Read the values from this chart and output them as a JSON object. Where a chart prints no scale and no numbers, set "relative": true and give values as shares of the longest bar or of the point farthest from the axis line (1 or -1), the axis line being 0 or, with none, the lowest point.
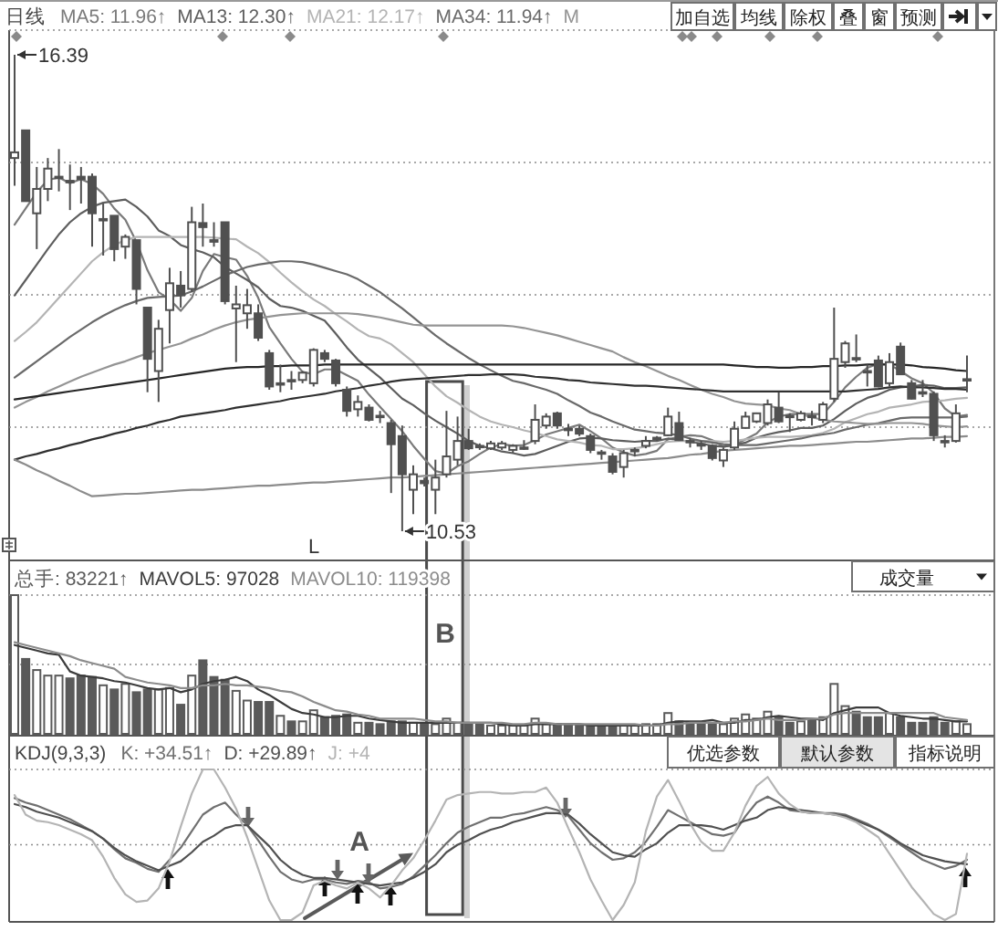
{
  "chart_data": [
    {
      "type": "candlestick",
      "title": "日线",
      "legend": "top left",
      "grid": "y",
      "color": "#505050",
      "categories": [
        null,
        null,
        null,
        null,
        null,
        null,
        null,
        null,
        null,
        null,
        null,
        null,
        null,
        null,
        null,
        null,
        null,
        null,
        null,
        null,
        null,
        null,
        null,
        null,
        null,
        null,
        null,
        null,
        null,
        null,
        null,
        null,
        null,
        null,
        null,
        null,
        null,
        null,
        null,
        null,
        null,
        null,
        null,
        null,
        null,
        null,
        null,
        null,
        null,
        null,
        null,
        null,
        null,
        null,
        null,
        null,
        null,
        null,
        null,
        null,
        null,
        null,
        null,
        null,
        null,
        null,
        null,
        null,
        null,
        null,
        null,
        null,
        null,
        null,
        null,
        null,
        null,
        null,
        null,
        null,
        null,
        null,
        null,
        null,
        null,
        null,
        null
      ],
      "ohlc": [
        [
          15.12,
          16.39,
          14.78,
          15.19
        ],
        [
          15.46,
          15.46,
          14.59,
          14.59
        ],
        [
          14.44,
          15.01,
          14.0,
          14.74
        ],
        [
          14.74,
          15.12,
          14.59,
          14.99
        ],
        [
          14.89,
          15.23,
          14.71,
          14.89
        ],
        [
          14.84,
          15.04,
          14.48,
          14.82
        ],
        [
          14.89,
          15.01,
          14.56,
          14.86
        ],
        [
          14.89,
          14.93,
          14.03,
          14.44
        ],
        [
          14.37,
          14.56,
          13.92,
          14.37
        ],
        [
          14.41,
          14.41,
          13.85,
          14.0
        ],
        [
          14.03,
          14.18,
          13.88,
          14.15
        ],
        [
          14.11,
          14.11,
          13.32,
          13.51
        ],
        [
          13.28,
          13.28,
          12.24,
          12.65
        ],
        [
          12.5,
          13.13,
          12.12,
          13.02
        ],
        [
          13.25,
          13.77,
          12.84,
          13.58
        ],
        [
          13.55,
          13.73,
          13.28,
          13.43
        ],
        [
          13.51,
          14.52,
          13.47,
          14.33
        ],
        [
          14.32,
          14.56,
          14.03,
          14.27
        ],
        [
          14.11,
          14.33,
          14.03,
          14.09
        ],
        [
          14.33,
          14.33,
          13.32,
          13.36
        ],
        [
          13.27,
          13.55,
          12.61,
          13.32
        ],
        [
          13.21,
          13.51,
          13.02,
          13.31
        ],
        [
          13.21,
          13.32,
          12.87,
          12.91
        ],
        [
          12.72,
          12.76,
          12.27,
          12.31
        ],
        [
          12.35,
          12.58,
          12.24,
          12.35
        ],
        [
          12.39,
          12.5,
          12.27,
          12.38
        ],
        [
          12.39,
          12.5,
          12.35,
          12.48
        ],
        [
          12.35,
          12.78,
          12.31,
          12.76
        ],
        [
          12.72,
          12.76,
          12.61,
          12.65
        ],
        [
          12.63,
          12.65,
          12.31,
          12.35
        ],
        [
          12.27,
          12.31,
          11.94,
          12.01
        ],
        [
          12.03,
          12.2,
          11.94,
          12.12
        ],
        [
          12.05,
          12.09,
          11.88,
          11.9
        ],
        [
          11.95,
          12.01,
          11.86,
          11.94
        ],
        [
          11.86,
          11.9,
          11.0,
          11.6
        ],
        [
          11.7,
          11.83,
          10.53,
          11.23
        ],
        [
          11.04,
          11.34,
          10.74,
          11.23
        ],
        [
          11.15,
          11.19,
          11.08,
          11.12
        ],
        [
          11.04,
          11.41,
          10.74,
          11.19
        ],
        [
          11.23,
          12.01,
          11.19,
          11.45
        ],
        [
          11.41,
          11.94,
          11.34,
          11.64
        ],
        [
          11.64,
          11.79,
          11.53,
          11.55
        ],
        [
          11.58,
          11.61,
          11.53,
          11.57
        ],
        [
          11.55,
          11.64,
          11.53,
          11.61
        ],
        [
          11.56,
          11.64,
          11.53,
          11.61
        ],
        [
          11.53,
          11.6,
          11.49,
          11.58
        ],
        [
          11.56,
          11.65,
          11.53,
          11.56
        ],
        [
          11.64,
          12.09,
          11.6,
          11.9
        ],
        [
          11.83,
          11.98,
          11.79,
          11.94
        ],
        [
          11.98,
          12.0,
          11.79,
          11.83
        ],
        [
          11.79,
          11.85,
          11.7,
          11.78
        ],
        [
          11.79,
          11.83,
          11.7,
          11.73
        ],
        [
          11.7,
          11.73,
          11.49,
          11.53
        ],
        [
          11.5,
          11.53,
          11.41,
          11.49
        ],
        [
          11.45,
          11.49,
          11.23,
          11.26
        ],
        [
          11.32,
          11.53,
          11.19,
          11.49
        ],
        [
          11.52,
          11.56,
          11.45,
          11.53
        ],
        [
          11.58,
          11.7,
          11.55,
          11.64
        ],
        [
          11.67,
          11.7,
          11.64,
          11.68
        ],
        [
          11.71,
          12.05,
          11.7,
          11.94
        ],
        [
          11.86,
          12.0,
          11.64,
          11.65
        ],
        [
          11.64,
          11.68,
          11.56,
          11.63
        ],
        [
          11.6,
          11.64,
          11.53,
          11.59
        ],
        [
          11.58,
          11.6,
          11.4,
          11.43
        ],
        [
          11.4,
          11.56,
          11.32,
          11.53
        ],
        [
          11.56,
          11.88,
          11.53,
          11.79
        ],
        [
          11.8,
          12.0,
          11.79,
          11.94
        ],
        [
          11.88,
          11.99,
          11.86,
          11.98
        ],
        [
          11.86,
          12.15,
          11.83,
          12.09
        ],
        [
          12.05,
          12.24,
          11.86,
          11.88
        ],
        [
          11.95,
          11.98,
          11.75,
          11.94
        ],
        [
          11.9,
          12.01,
          11.88,
          11.98
        ],
        [
          11.95,
          12.01,
          11.83,
          11.94
        ],
        [
          11.9,
          12.12,
          11.86,
          12.09
        ],
        [
          12.16,
          13.28,
          12.12,
          12.65
        ],
        [
          12.61,
          12.87,
          12.54,
          12.84
        ],
        [
          12.66,
          12.95,
          12.61,
          12.65
        ],
        [
          12.5,
          12.58,
          12.31,
          12.49
        ],
        [
          12.63,
          12.69,
          12.3,
          12.31
        ],
        [
          12.35,
          12.72,
          12.31,
          12.61
        ],
        [
          12.8,
          12.85,
          12.45,
          12.46
        ],
        [
          12.35,
          12.39,
          12.15,
          12.16
        ],
        [
          12.24,
          12.39,
          12.18,
          12.23
        ],
        [
          12.22,
          12.25,
          11.64,
          11.71
        ],
        [
          11.64,
          11.71,
          11.56,
          11.63
        ],
        [
          11.64,
          12.09,
          11.62,
          11.98
        ],
        [
          12.39,
          12.69,
          12.24,
          12.4
        ]
      ],
      "series": [
        {
          "name": "MA5: 11.96↑",
          "type": "line",
          "color": "#7a7a7a",
          "values": [
            14.3,
            14.5,
            14.7,
            14.85,
            14.88,
            14.81,
            14.86,
            14.8,
            14.68,
            14.5,
            14.36,
            14.09,
            13.74,
            13.47,
            13.38,
            13.24,
            13.4,
            13.73,
            13.94,
            13.9,
            13.87,
            13.67,
            13.4,
            13.04,
            12.84,
            12.65,
            12.49,
            12.46,
            12.52,
            12.52,
            12.45,
            12.38,
            12.21,
            12.06,
            11.91,
            11.76,
            11.58,
            11.42,
            11.27,
            11.24,
            11.33,
            11.39,
            11.48,
            11.56,
            11.6,
            11.58,
            11.59,
            11.65,
            11.72,
            11.76,
            11.8,
            11.84,
            11.76,
            11.67,
            11.56,
            11.5,
            11.46,
            11.48,
            11.52,
            11.66,
            11.69,
            11.71,
            11.7,
            11.65,
            11.57,
            11.59,
            11.66,
            11.73,
            11.87,
            11.94,
            11.97,
            11.97,
            11.97,
            11.97,
            12.12,
            12.3,
            12.43,
            12.54,
            12.59,
            12.58,
            12.5,
            12.41,
            12.35,
            12.23,
            12.04,
            11.94,
            11.96
          ]
        },
        {
          "name": "MA13: 12.30↑",
          "type": "line",
          "color": "#5e5e5e",
          "values": [
            13.43,
            13.62,
            13.81,
            14.0,
            14.18,
            14.33,
            14.44,
            14.52,
            14.57,
            14.59,
            14.61,
            14.52,
            14.4,
            14.23,
            14.16,
            14.05,
            14.0,
            13.96,
            13.9,
            13.78,
            13.7,
            13.62,
            13.53,
            13.39,
            13.3,
            13.28,
            13.24,
            13.18,
            13.12,
            12.96,
            12.79,
            12.64,
            12.53,
            12.42,
            12.29,
            12.16,
            12.08,
            11.98,
            11.89,
            11.81,
            11.73,
            11.64,
            11.58,
            11.55,
            11.51,
            11.49,
            11.46,
            11.48,
            11.53,
            11.58,
            11.63,
            11.67,
            11.68,
            11.67,
            11.65,
            11.64,
            11.63,
            11.64,
            11.64,
            11.67,
            11.65,
            11.63,
            11.61,
            11.58,
            11.57,
            11.59,
            11.62,
            11.68,
            11.72,
            11.75,
            11.77,
            11.8,
            11.8,
            11.83,
            11.91,
            12.01,
            12.1,
            12.17,
            12.21,
            12.27,
            12.3,
            12.31,
            12.33,
            12.32,
            12.29,
            12.29,
            12.3
          ]
        },
        {
          "name": "MA21: 12.17↑",
          "type": "line",
          "color": "#b4b4b4",
          "values": [
            12.87,
            12.98,
            13.1,
            13.25,
            13.4,
            13.55,
            13.7,
            13.85,
            13.96,
            14.05,
            14.11,
            14.15,
            14.15,
            14.15,
            14.15,
            14.15,
            14.15,
            14.15,
            14.14,
            14.13,
            14.12,
            14.03,
            13.95,
            13.84,
            13.71,
            13.59,
            13.48,
            13.38,
            13.3,
            13.2,
            13.11,
            13.01,
            12.93,
            12.9,
            12.83,
            12.72,
            12.61,
            12.46,
            12.31,
            12.19,
            12.11,
            12.02,
            11.94,
            11.88,
            11.84,
            11.81,
            11.77,
            11.74,
            11.7,
            11.66,
            11.64,
            11.62,
            11.59,
            11.58,
            11.54,
            11.54,
            11.55,
            11.57,
            11.6,
            11.63,
            11.64,
            11.64,
            11.64,
            11.64,
            11.63,
            11.64,
            11.66,
            11.68,
            11.69,
            11.69,
            11.69,
            11.7,
            11.71,
            11.74,
            11.79,
            11.87,
            11.92,
            11.97,
            12.0,
            12.05,
            12.07,
            12.09,
            12.12,
            12.13,
            12.14,
            12.16,
            12.17
          ]
        },
        {
          "name": "MA34: 11.94↑",
          "type": "line",
          "color": "#6a6a6a",
          "values": [
            12.42,
            12.52,
            12.62,
            12.72,
            12.82,
            12.92,
            13.01,
            13.1,
            13.18,
            13.25,
            13.31,
            13.36,
            13.4,
            13.41,
            13.42,
            13.43,
            13.48,
            13.54,
            13.61,
            13.68,
            13.73,
            13.78,
            13.81,
            13.83,
            13.85,
            13.85,
            13.84,
            13.81,
            13.77,
            13.73,
            13.69,
            13.63,
            13.55,
            13.47,
            13.37,
            13.27,
            13.16,
            13.05,
            12.94,
            12.84,
            12.75,
            12.66,
            12.58,
            12.51,
            12.44,
            12.38,
            12.35,
            12.31,
            12.27,
            12.22,
            12.14,
            12.07,
            11.99,
            11.94,
            11.88,
            11.83,
            11.78,
            11.76,
            11.74,
            11.73,
            11.71,
            11.67,
            11.64,
            11.62,
            11.6,
            11.59,
            11.59,
            11.59,
            11.61,
            11.63,
            11.65,
            11.67,
            11.7,
            11.72,
            11.74,
            11.78,
            11.81,
            11.84,
            11.86,
            11.89,
            11.92,
            11.93,
            11.93,
            11.93,
            11.93,
            11.93,
            11.94
          ]
        },
        {
          "name": "M",
          "type": "line",
          "color": "#949494",
          "values": [
            12.05,
            12.12,
            12.18,
            12.25,
            12.31,
            12.37,
            12.43,
            12.48,
            12.53,
            12.58,
            12.62,
            12.67,
            12.72,
            12.76,
            12.8,
            12.84,
            12.9,
            12.95,
            13.01,
            13.06,
            13.1,
            13.13,
            13.15,
            13.17,
            13.19,
            13.2,
            13.21,
            13.21,
            13.21,
            13.21,
            13.21,
            13.2,
            13.18,
            13.16,
            13.13,
            13.1,
            13.07,
            13.06,
            13.06,
            13.06,
            13.06,
            13.06,
            13.06,
            13.06,
            13.06,
            13.05,
            13.03,
            13.0,
            12.97,
            12.94,
            12.9,
            12.86,
            12.82,
            12.78,
            12.74,
            12.67,
            12.61,
            12.56,
            12.5,
            12.44,
            12.39,
            12.33,
            12.27,
            12.22,
            12.18,
            12.13,
            12.1,
            12.09,
            12.08,
            12.04,
            12.02,
            11.97,
            11.93,
            11.9,
            11.88,
            11.87,
            11.86,
            11.85,
            11.85,
            11.86,
            11.86,
            11.86,
            11.85,
            11.83,
            11.82,
            11.81,
            11.82
          ]
        },
        {
          "type": "line",
          "color": "#262626",
          "values": [
            12.15,
            12.17,
            12.19,
            12.21,
            12.23,
            12.25,
            12.27,
            12.29,
            12.31,
            12.33,
            12.35,
            12.37,
            12.39,
            12.41,
            12.43,
            12.45,
            12.47,
            12.49,
            12.51,
            12.53,
            12.54,
            12.55,
            12.55,
            12.56,
            12.56,
            12.57,
            12.57,
            12.57,
            12.58,
            12.58,
            12.58,
            12.58,
            12.58,
            12.58,
            12.58,
            12.58,
            12.58,
            12.58,
            12.58,
            12.58,
            12.58,
            12.58,
            12.58,
            12.58,
            12.58,
            12.58,
            12.58,
            12.58,
            12.58,
            12.58,
            12.58,
            12.58,
            12.58,
            12.58,
            12.58,
            12.58,
            12.58,
            12.58,
            12.58,
            12.58,
            12.58,
            12.58,
            12.58,
            12.58,
            12.58,
            12.57,
            12.56,
            12.55,
            12.55,
            12.54,
            12.54,
            12.55,
            12.55,
            12.56,
            12.56,
            12.57,
            12.57,
            12.58,
            12.58,
            12.58,
            12.58,
            12.57,
            12.55,
            12.54,
            12.53,
            12.51,
            12.5
          ]
        },
        {
          "type": "line",
          "color": "#303030",
          "values": [
            11.41,
            11.45,
            11.48,
            11.52,
            11.55,
            11.59,
            11.62,
            11.66,
            11.69,
            11.73,
            11.76,
            11.8,
            11.83,
            11.87,
            11.9,
            11.94,
            11.96,
            11.98,
            12.0,
            12.02,
            12.05,
            12.07,
            12.09,
            12.11,
            12.13,
            12.16,
            12.18,
            12.2,
            12.22,
            12.25,
            12.27,
            12.29,
            12.32,
            12.34,
            12.37,
            12.39,
            12.4,
            12.41,
            12.42,
            12.43,
            12.44,
            12.45,
            12.45,
            12.46,
            12.46,
            12.46,
            12.45,
            12.43,
            12.42,
            12.41,
            12.39,
            12.38,
            12.36,
            12.35,
            12.34,
            12.33,
            12.32,
            12.32,
            12.31,
            12.3,
            12.29,
            12.28,
            12.27,
            12.26,
            12.25,
            12.25,
            12.25,
            12.25,
            12.25,
            12.25,
            12.25,
            12.25,
            12.25,
            12.25,
            12.25,
            12.25,
            12.26,
            12.27,
            12.28,
            12.3,
            12.31,
            12.3,
            12.3,
            12.29,
            12.28,
            12.28,
            12.27
          ]
        },
        {
          "type": "line",
          "color": "#8c8c8c",
          "values": [
            11.41,
            11.35,
            11.28,
            11.22,
            11.15,
            11.09,
            11.02,
            10.96,
            10.97,
            10.98,
            10.99,
            10.99,
            11.0,
            11.01,
            11.02,
            11.03,
            11.04,
            11.04,
            11.05,
            11.06,
            11.07,
            11.08,
            11.09,
            11.09,
            11.1,
            11.11,
            11.12,
            11.13,
            11.13,
            11.14,
            11.15,
            11.16,
            11.17,
            11.18,
            11.19,
            11.19,
            11.2,
            11.21,
            11.22,
            11.23,
            11.24,
            11.25,
            11.26,
            11.27,
            11.28,
            11.29,
            11.3,
            11.31,
            11.32,
            11.33,
            11.34,
            11.35,
            11.36,
            11.37,
            11.38,
            11.39,
            11.4,
            11.41,
            11.42,
            11.43,
            11.45,
            11.47,
            11.48,
            11.5,
            11.52,
            11.53,
            11.54,
            11.55,
            11.56,
            11.57,
            11.58,
            11.58,
            11.59,
            11.6,
            11.61,
            11.62,
            11.63,
            11.63,
            11.64,
            11.65,
            11.66,
            11.67,
            11.67,
            11.68,
            11.69,
            11.69,
            11.7
          ]
        }
      ],
      "annotations": [
        "16.39",
        "10.53",
        "L",
        "加自选",
        "均线",
        "除权",
        "叠",
        "窗",
        "预测"
      ]
    },
    {
      "type": "bar",
      "relative": true,
      "legend": "top left",
      "ref_lines": [
        {
          "axis": "y",
          "value": 1,
          "line_style": "dotted",
          "color": "#8c8c8c"
        },
        {
          "axis": "y",
          "value": 0.5,
          "line_style": "dotted",
          "color": "#8c8c8c"
        }
      ],
      "categories": [
        null,
        null,
        null,
        null,
        null,
        null,
        null,
        null,
        null,
        null,
        null,
        null,
        null,
        null,
        null,
        null,
        null,
        null,
        null,
        null,
        null,
        null,
        null,
        null,
        null,
        null,
        null,
        null,
        null,
        null,
        null,
        null,
        null,
        null,
        null,
        null,
        null,
        null,
        null,
        null,
        null,
        null,
        null,
        null,
        null,
        null,
        null,
        null,
        null,
        null,
        null,
        null,
        null,
        null,
        null,
        null,
        null,
        null,
        null,
        null,
        null,
        null,
        null,
        null,
        null,
        null,
        null,
        null,
        null,
        null,
        null,
        null,
        null,
        null,
        null,
        null,
        null,
        null,
        null,
        null,
        null,
        null,
        null,
        null,
        null,
        null,
        null
      ],
      "series": [
        {
          "name": "总手: 83221↑",
          "type": "bar",
          "color": "#5a5a5a",
          "colors": [
            "#ffffff",
            "#5a5a5a",
            "#ffffff",
            "#ffffff",
            "#ffffff",
            "#5a5a5a",
            "#5a5a5a",
            "#5a5a5a",
            "#ffffff",
            "#5a5a5a",
            "#ffffff",
            "#5a5a5a",
            "#5a5a5a",
            "#ffffff",
            "#ffffff",
            "#5a5a5a",
            "#ffffff",
            "#5a5a5a",
            "#5a5a5a",
            "#5a5a5a",
            "#ffffff",
            "#ffffff",
            "#5a5a5a",
            "#5a5a5a",
            "#ffffff",
            "#5a5a5a",
            "#ffffff",
            "#ffffff",
            "#5a5a5a",
            "#5a5a5a",
            "#5a5a5a",
            "#ffffff",
            "#5a5a5a",
            "#5a5a5a",
            "#5a5a5a",
            "#5a5a5a",
            "#ffffff",
            "#5a5a5a",
            "#ffffff",
            "#ffffff",
            "#ffffff",
            "#5a5a5a",
            "#5a5a5a",
            "#ffffff",
            "#ffffff",
            "#ffffff",
            "#ffffff",
            "#ffffff",
            "#ffffff",
            "#5a5a5a",
            "#5a5a5a",
            "#5a5a5a",
            "#5a5a5a",
            "#5a5a5a",
            "#5a5a5a",
            "#ffffff",
            "#ffffff",
            "#ffffff",
            "#ffffff",
            "#ffffff",
            "#5a5a5a",
            "#5a5a5a",
            "#5a5a5a",
            "#5a5a5a",
            "#ffffff",
            "#ffffff",
            "#ffffff",
            "#ffffff",
            "#ffffff",
            "#5a5a5a",
            "#5a5a5a",
            "#ffffff",
            "#5a5a5a",
            "#ffffff",
            "#ffffff",
            "#ffffff",
            "#5a5a5a",
            "#5a5a5a",
            "#5a5a5a",
            "#ffffff",
            "#5a5a5a",
            "#5a5a5a",
            "#5a5a5a",
            "#5a5a5a",
            "#5a5a5a",
            "#ffffff",
            "#ffffff"
          ],
          "values": [
            1,
            0.54,
            0.46,
            0.42,
            0.42,
            0.4,
            0.42,
            0.41,
            0.35,
            0.32,
            0.36,
            0.3,
            0.32,
            0.32,
            0.33,
            0.21,
            0.42,
            0.53,
            0.41,
            0.39,
            0.31,
            0.24,
            0.23,
            0.23,
            0.13,
            0.09,
            0.09,
            0.17,
            0.12,
            0.13,
            0.14,
            0.08,
            0.08,
            0.07,
            0.09,
            0.09,
            0.08,
            0.07,
            0.07,
            0.11,
            0.08,
            0.07,
            0.07,
            0.06,
            0.06,
            0.06,
            0.06,
            0.11,
            0.07,
            0.07,
            0.06,
            0.06,
            0.06,
            0.06,
            0.06,
            0.06,
            0.06,
            0.07,
            0.07,
            0.15,
            0.09,
            0.08,
            0.08,
            0.08,
            0.07,
            0.11,
            0.14,
            0.11,
            0.16,
            0.12,
            0.08,
            0.09,
            0.1,
            0.12,
            0.36,
            0.2,
            0.16,
            0.12,
            0.12,
            0.15,
            0.12,
            0.08,
            0.08,
            0.12,
            0.08,
            0.09,
            0.07
          ]
        },
        {
          "name": "MAVOL5: 97028",
          "type": "line",
          "color": "#3c3c3c",
          "values": [
            0.64,
            0.62,
            0.6,
            0.58,
            0.57,
            0.45,
            0.42,
            0.41,
            0.4,
            0.38,
            0.37,
            0.35,
            0.33,
            0.32,
            0.33,
            0.3,
            0.32,
            0.36,
            0.38,
            0.39,
            0.41,
            0.38,
            0.32,
            0.28,
            0.23,
            0.18,
            0.15,
            0.14,
            0.12,
            0.12,
            0.13,
            0.13,
            0.11,
            0.1,
            0.09,
            0.08,
            0.08,
            0.08,
            0.08,
            0.08,
            0.08,
            0.08,
            0.08,
            0.08,
            0.07,
            0.06,
            0.06,
            0.07,
            0.07,
            0.07,
            0.07,
            0.07,
            0.06,
            0.06,
            0.06,
            0.06,
            0.06,
            0.06,
            0.06,
            0.08,
            0.09,
            0.09,
            0.09,
            0.1,
            0.08,
            0.08,
            0.1,
            0.1,
            0.12,
            0.13,
            0.12,
            0.11,
            0.11,
            0.1,
            0.15,
            0.17,
            0.19,
            0.19,
            0.19,
            0.15,
            0.13,
            0.12,
            0.11,
            0.11,
            0.1,
            0.09,
            0.09
          ]
        },
        {
          "name": "MAVOL10: 119398",
          "type": "line",
          "color": "#8c8c8c",
          "values": [
            0.66,
            0.64,
            0.62,
            0.6,
            0.58,
            0.56,
            0.53,
            0.51,
            0.49,
            0.47,
            0.41,
            0.39,
            0.37,
            0.36,
            0.35,
            0.33,
            0.33,
            0.35,
            0.35,
            0.36,
            0.35,
            0.35,
            0.34,
            0.33,
            0.31,
            0.3,
            0.27,
            0.23,
            0.2,
            0.17,
            0.16,
            0.14,
            0.13,
            0.11,
            0.11,
            0.11,
            0.11,
            0.1,
            0.09,
            0.09,
            0.08,
            0.08,
            0.08,
            0.08,
            0.08,
            0.07,
            0.07,
            0.08,
            0.08,
            0.07,
            0.07,
            0.07,
            0.07,
            0.07,
            0.07,
            0.07,
            0.07,
            0.06,
            0.06,
            0.07,
            0.07,
            0.08,
            0.08,
            0.08,
            0.08,
            0.09,
            0.09,
            0.1,
            0.11,
            0.1,
            0.1,
            0.1,
            0.11,
            0.11,
            0.14,
            0.15,
            0.15,
            0.15,
            0.15,
            0.15,
            0.15,
            0.15,
            0.15,
            0.15,
            0.12,
            0.11,
            0.1
          ]
        }
      ],
      "annotations": [
        "成交量",
        "B"
      ]
    },
    {
      "type": "line",
      "relative": true,
      "title": "KDJ(9,3,3)",
      "legend": "top left",
      "ref_lines": [
        {
          "axis": "y",
          "value": 1,
          "line_style": "dotted",
          "color": "#8c8c8c"
        },
        {
          "axis": "y",
          "value": 0.5,
          "line_style": "dotted",
          "color": "#8c8c8c"
        }
      ],
      "categories": [
        null,
        null,
        null,
        null,
        null,
        null,
        null,
        null,
        null,
        null,
        null,
        null,
        null,
        null,
        null,
        null,
        null,
        null,
        null,
        null,
        null,
        null,
        null,
        null,
        null,
        null,
        null,
        null,
        null,
        null,
        null,
        null,
        null,
        null,
        null,
        null,
        null,
        null,
        null,
        null,
        null,
        null,
        null,
        null,
        null,
        null,
        null,
        null,
        null,
        null,
        null,
        null,
        null,
        null,
        null,
        null,
        null,
        null,
        null,
        null,
        null,
        null,
        null,
        null,
        null,
        null,
        null,
        null,
        null,
        null,
        null,
        null,
        null,
        null,
        null,
        null,
        null,
        null,
        null,
        null,
        null,
        null,
        null,
        null,
        null,
        null,
        null
      ],
      "series": [
        {
          "name": "K: +34.51↑",
          "color": "#707070",
          "values": [
            0.81,
            0.78,
            0.76,
            0.73,
            0.7,
            0.67,
            0.63,
            0.59,
            0.54,
            0.47,
            0.41,
            0.38,
            0.34,
            0.32,
            0.4,
            0.48,
            0.59,
            0.7,
            0.75,
            0.78,
            0.7,
            0.63,
            0.53,
            0.42,
            0.32,
            0.27,
            0.25,
            0.27,
            0.27,
            0.25,
            0.24,
            0.26,
            0.25,
            0.21,
            0.22,
            0.24,
            0.29,
            0.36,
            0.43,
            0.51,
            0.58,
            0.62,
            0.65,
            0.68,
            0.68,
            0.7,
            0.71,
            0.73,
            0.75,
            0.73,
            0.69,
            0.6,
            0.51,
            0.45,
            0.4,
            0.41,
            0.45,
            0.52,
            0.62,
            0.73,
            0.69,
            0.65,
            0.61,
            0.57,
            0.56,
            0.58,
            0.69,
            0.78,
            0.82,
            0.78,
            0.73,
            0.72,
            0.71,
            0.71,
            0.71,
            0.7,
            0.67,
            0.64,
            0.6,
            0.55,
            0.5,
            0.45,
            0.4,
            0.37,
            0.34,
            0.36,
            0.4
          ]
        },
        {
          "name": "D: +29.89↑",
          "color": "#505050",
          "values": [
            0.77,
            0.75,
            0.72,
            0.7,
            0.68,
            0.65,
            0.62,
            0.59,
            0.54,
            0.48,
            0.43,
            0.39,
            0.36,
            0.33,
            0.36,
            0.39,
            0.45,
            0.52,
            0.56,
            0.61,
            0.63,
            0.63,
            0.56,
            0.49,
            0.4,
            0.34,
            0.3,
            0.28,
            0.28,
            0.27,
            0.26,
            0.25,
            0.24,
            0.23,
            0.24,
            0.25,
            0.28,
            0.32,
            0.37,
            0.45,
            0.5,
            0.53,
            0.57,
            0.6,
            0.62,
            0.65,
            0.67,
            0.69,
            0.71,
            0.71,
            0.7,
            0.64,
            0.57,
            0.51,
            0.45,
            0.43,
            0.42,
            0.47,
            0.51,
            0.58,
            0.63,
            0.63,
            0.63,
            0.62,
            0.6,
            0.63,
            0.66,
            0.68,
            0.73,
            0.75,
            0.74,
            0.73,
            0.72,
            0.71,
            0.7,
            0.69,
            0.66,
            0.63,
            0.6,
            0.56,
            0.51,
            0.47,
            0.43,
            0.41,
            0.39,
            0.38,
            0.37
          ]
        },
        {
          "name": "J: +4",
          "color": "#b4b4b4",
          "values": [
            0.83,
            0.7,
            0.66,
            0.65,
            0.63,
            0.6,
            0.57,
            0.53,
            0.42,
            0.28,
            0.17,
            0.12,
            0.13,
            0.21,
            0.39,
            0.62,
            0.84,
            1,
            1,
            0.88,
            0.74,
            0.55,
            0.34,
            0.13,
            0,
            0,
            0.05,
            0.23,
            0.26,
            0.23,
            0.21,
            0.25,
            0.21,
            0.15,
            0.23,
            0.33,
            0.41,
            0.53,
            0.66,
            0.8,
            0.83,
            0.84,
            0.85,
            0.85,
            0.84,
            0.84,
            0.85,
            0.85,
            0.88,
            0.78,
            0.61,
            0.45,
            0.27,
            0.13,
            0,
            0.1,
            0.25,
            0.59,
            0.82,
            0.93,
            0.79,
            0.64,
            0.52,
            0.46,
            0.46,
            0.58,
            0.76,
            0.89,
            0.95,
            0.84,
            0.77,
            0.72,
            0.71,
            0.71,
            0.7,
            0.68,
            0.65,
            0.6,
            0.55,
            0.44,
            0.33,
            0.22,
            0.13,
            0.04,
            0,
            0.04,
            0.44
          ]
        }
      ],
      "annotations": [
        "优选参数",
        "默认参数",
        "指标说明",
        "A"
      ]
    }
  ]
}
